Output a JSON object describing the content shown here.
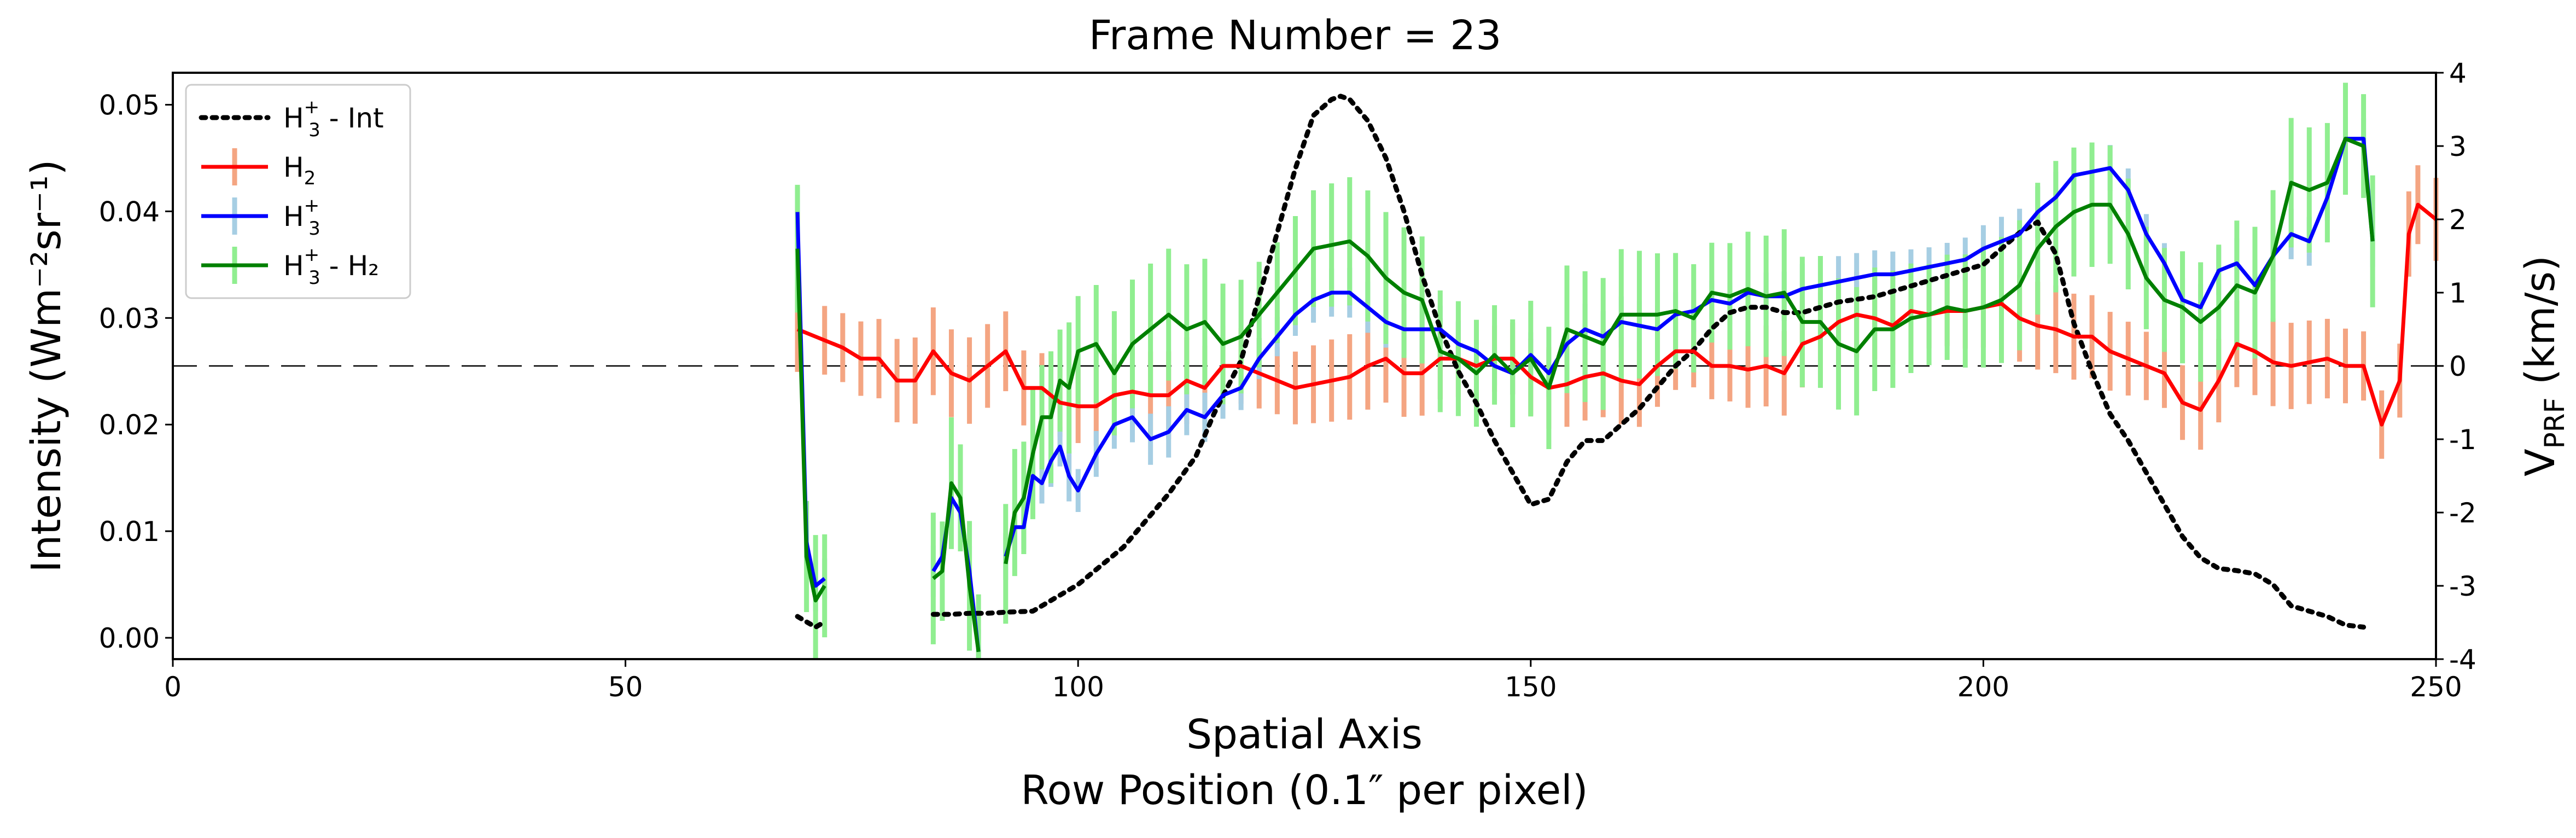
{
  "chart_data": {
    "type": "line",
    "title": "Frame Number = 23",
    "xlabel_line1": "Spatial Axis",
    "xlabel_line2": "Row Position (0.1″ per pixel)",
    "ylabel_left": "Intensity (Wm⁻²sr⁻¹)",
    "ylabel_right_main": "V",
    "ylabel_right_sub": "PRF",
    "ylabel_right_unit": " (km/s)",
    "xlim": [
      0,
      250
    ],
    "ylim_left": [
      -0.002,
      0.053
    ],
    "ylim_right": [
      -4,
      4
    ],
    "xticks": [
      0,
      50,
      100,
      150,
      200,
      250
    ],
    "yticks_left": [
      0.0,
      0.01,
      0.02,
      0.03,
      0.04,
      0.05
    ],
    "ytick_labels_left": [
      "0.00",
      "0.01",
      "0.02",
      "0.03",
      "0.04",
      "0.05"
    ],
    "yticks_right": [
      -4,
      -3,
      -2,
      -1,
      0,
      1,
      2,
      3,
      4
    ],
    "legend_position": "top-left",
    "colors": {
      "int": "#000000",
      "h2": "#ff0000",
      "h3": "#0000ff",
      "diff": "#008000",
      "h2_err": "#f4a582",
      "h3_err": "#a6cee3",
      "diff_err": "#90ee90"
    },
    "legend": [
      {
        "key": "int",
        "main": "H",
        "sub": "3",
        "sup": "+",
        "suffix": " - Int"
      },
      {
        "key": "h2",
        "main": "H",
        "sub": "2",
        "sup": "",
        "suffix": ""
      },
      {
        "key": "h3",
        "main": "H",
        "sub": "3",
        "sup": "+",
        "suffix": ""
      },
      {
        "key": "diff",
        "main": "H",
        "sub": "3",
        "sup": "+",
        "suffix": " - H₂"
      }
    ],
    "series": [
      {
        "key": "int",
        "axis": "left",
        "style": "dotted",
        "segments": [
          {
            "x": [
              69,
              70,
              71,
              72
            ],
            "y": [
              0.002,
              0.0015,
              0.001,
              0.0015
            ]
          },
          {
            "x": [
              84,
              86,
              88,
              90,
              92,
              95,
              100,
              105,
              110,
              113,
              115,
              118,
              120,
              122,
              124,
              126,
              128,
              129,
              130,
              132,
              134,
              136,
              138,
              140,
              142,
              144,
              146,
              148,
              150,
              152,
              154,
              156,
              158,
              160,
              162,
              164,
              166,
              168,
              170,
              172,
              174,
              176,
              178,
              180,
              184,
              188,
              192,
              196,
              200,
              204,
              206,
              208,
              210,
              212,
              214,
              216,
              218,
              220,
              222,
              224,
              226,
              228,
              230,
              232,
              234,
              236,
              238,
              240,
              242
            ],
            "y": [
              0.0022,
              0.0022,
              0.0023,
              0.0023,
              0.0024,
              0.0025,
              0.005,
              0.0085,
              0.0135,
              0.017,
              0.021,
              0.026,
              0.032,
              0.038,
              0.044,
              0.049,
              0.0505,
              0.0508,
              0.0505,
              0.0485,
              0.045,
              0.04,
              0.034,
              0.029,
              0.025,
              0.022,
              0.0185,
              0.0155,
              0.0125,
              0.013,
              0.0165,
              0.0185,
              0.0185,
              0.02,
              0.0215,
              0.0235,
              0.0255,
              0.027,
              0.029,
              0.0305,
              0.031,
              0.031,
              0.0305,
              0.0305,
              0.0315,
              0.032,
              0.033,
              0.034,
              0.035,
              0.038,
              0.039,
              0.036,
              0.0295,
              0.025,
              0.021,
              0.0185,
              0.0155,
              0.0125,
              0.0095,
              0.0075,
              0.0065,
              0.0063,
              0.006,
              0.005,
              0.003,
              0.0025,
              0.002,
              0.0012,
              0.001
            ]
          }
        ]
      },
      {
        "key": "h2",
        "axis": "right",
        "style": "solid",
        "err": 0.6,
        "segments": [
          {
            "x": [
              69,
              72,
              74,
              76,
              78,
              80,
              82,
              84,
              86,
              88,
              90,
              92,
              94,
              96,
              98,
              100,
              102,
              104,
              106,
              108,
              110,
              112,
              114,
              116,
              118,
              120,
              122,
              124,
              126,
              128,
              130,
              132,
              134,
              136,
              138,
              140,
              142,
              144,
              146,
              148,
              150,
              152,
              154,
              156,
              158,
              160,
              162,
              164,
              166,
              168,
              170,
              172,
              174,
              176,
              178,
              180,
              182,
              184,
              186,
              188,
              190,
              192,
              194,
              196,
              198,
              200,
              202,
              204,
              206,
              208,
              210,
              212,
              214,
              216,
              218,
              220,
              222,
              224,
              226,
              228,
              230,
              232,
              234,
              236,
              238,
              240,
              242,
              244,
              246,
              247,
              248,
              250
            ],
            "y": [
              0.5,
              0.35,
              0.25,
              0.1,
              0.1,
              -0.2,
              -0.2,
              0.2,
              -0.1,
              -0.2,
              0.0,
              0.2,
              -0.3,
              -0.3,
              -0.5,
              -0.55,
              -0.55,
              -0.4,
              -0.35,
              -0.4,
              -0.4,
              -0.2,
              -0.3,
              0.0,
              0.0,
              -0.1,
              -0.2,
              -0.3,
              -0.25,
              -0.2,
              -0.15,
              0.0,
              0.1,
              -0.1,
              -0.1,
              0.1,
              0.1,
              0.0,
              0.1,
              0.1,
              -0.15,
              -0.3,
              -0.25,
              -0.15,
              -0.1,
              -0.2,
              -0.25,
              0.0,
              0.2,
              0.2,
              0.0,
              0.0,
              -0.05,
              0.0,
              -0.1,
              0.3,
              0.4,
              0.6,
              0.7,
              0.65,
              0.55,
              0.75,
              0.7,
              0.75,
              0.75,
              0.8,
              0.85,
              0.65,
              0.55,
              0.5,
              0.4,
              0.4,
              0.2,
              0.1,
              0.0,
              -0.1,
              -0.5,
              -0.6,
              -0.2,
              0.3,
              0.2,
              0.05,
              0.0,
              0.05,
              0.1,
              0.0,
              0.0,
              -0.8,
              -0.2,
              1.8,
              2.2,
              2.0
            ]
          }
        ]
      },
      {
        "key": "h3",
        "axis": "right",
        "style": "solid",
        "err": 0.35,
        "segments": [
          {
            "x": [
              69,
              70,
              71,
              72
            ],
            "y": [
              2.1,
              -2.4,
              -3.0,
              -2.9
            ]
          },
          {
            "x": [
              84,
              85,
              86,
              87,
              88,
              89
            ],
            "y": [
              -2.8,
              -2.6,
              -1.8,
              -2.0,
              -2.8,
              -3.9
            ]
          },
          {
            "x": [
              92,
              93,
              94,
              95,
              96,
              97,
              98,
              99,
              100,
              102,
              104,
              106,
              108,
              110,
              112,
              114,
              116,
              118,
              120,
              122,
              124,
              126,
              128,
              130,
              132,
              134,
              136,
              138,
              140,
              142,
              144,
              146,
              148,
              150,
              152,
              154,
              156,
              158,
              160,
              162,
              164,
              166,
              168,
              170,
              172,
              174,
              176,
              178,
              180,
              182,
              184,
              186,
              188,
              190,
              192,
              194,
              196,
              198,
              200,
              202,
              204,
              206,
              208,
              210,
              212,
              214,
              216,
              218,
              220,
              222,
              224,
              226,
              228,
              230,
              232,
              234,
              236,
              238,
              240,
              242,
              243
            ],
            "y": [
              -2.6,
              -2.2,
              -2.2,
              -1.5,
              -1.6,
              -1.3,
              -1.1,
              -1.5,
              -1.7,
              -1.2,
              -0.8,
              -0.7,
              -1.0,
              -0.9,
              -0.6,
              -0.7,
              -0.4,
              -0.3,
              0.1,
              0.4,
              0.7,
              0.9,
              1.0,
              1.0,
              0.8,
              0.6,
              0.5,
              0.5,
              0.5,
              0.3,
              0.2,
              0.0,
              -0.1,
              0.15,
              -0.1,
              0.3,
              0.5,
              0.4,
              0.6,
              0.55,
              0.5,
              0.7,
              0.75,
              0.9,
              0.85,
              1.0,
              0.95,
              0.95,
              1.05,
              1.1,
              1.15,
              1.2,
              1.25,
              1.25,
              1.3,
              1.35,
              1.4,
              1.45,
              1.6,
              1.7,
              1.8,
              2.1,
              2.3,
              2.6,
              2.65,
              2.7,
              2.4,
              1.8,
              1.4,
              0.9,
              0.8,
              1.3,
              1.4,
              1.1,
              1.5,
              1.8,
              1.7,
              2.3,
              3.1,
              3.1,
              1.7
            ]
          }
        ]
      },
      {
        "key": "diff",
        "axis": "right",
        "style": "solid",
        "err": 0.9,
        "segments": [
          {
            "x": [
              69,
              70,
              71,
              72
            ],
            "y": [
              1.6,
              -2.6,
              -3.2,
              -3.0
            ]
          },
          {
            "x": [
              84,
              85,
              86,
              87,
              88,
              89
            ],
            "y": [
              -2.9,
              -2.8,
              -1.6,
              -1.8,
              -3.0,
              -3.9
            ]
          },
          {
            "x": [
              92,
              93,
              94,
              95,
              96,
              97,
              98,
              99,
              100,
              102,
              104,
              106,
              108,
              110,
              112,
              114,
              116,
              118,
              120,
              122,
              124,
              126,
              128,
              130,
              132,
              134,
              136,
              138,
              140,
              142,
              144,
              146,
              148,
              150,
              152,
              154,
              156,
              158,
              160,
              162,
              164,
              166,
              168,
              170,
              172,
              174,
              176,
              178,
              180,
              182,
              184,
              186,
              188,
              190,
              192,
              194,
              196,
              198,
              200,
              202,
              204,
              206,
              208,
              210,
              212,
              214,
              216,
              218,
              220,
              222,
              224,
              226,
              228,
              230,
              232,
              234,
              236,
              238,
              240,
              242,
              243
            ],
            "y": [
              -2.7,
              -2.0,
              -1.8,
              -1.2,
              -0.7,
              -0.7,
              -0.2,
              -0.3,
              0.2,
              0.3,
              -0.1,
              0.3,
              0.5,
              0.7,
              0.5,
              0.6,
              0.3,
              0.4,
              0.7,
              1.0,
              1.3,
              1.6,
              1.65,
              1.7,
              1.5,
              1.2,
              1.0,
              0.9,
              0.2,
              0.1,
              -0.1,
              0.15,
              -0.1,
              0.1,
              -0.3,
              0.5,
              0.4,
              0.3,
              0.7,
              0.7,
              0.7,
              0.75,
              0.65,
              1.0,
              0.95,
              1.05,
              0.95,
              1.0,
              0.6,
              0.6,
              0.3,
              0.2,
              0.5,
              0.5,
              0.65,
              0.7,
              0.8,
              0.75,
              0.8,
              0.9,
              1.1,
              1.6,
              1.9,
              2.1,
              2.2,
              2.2,
              1.8,
              1.2,
              0.9,
              0.8,
              0.6,
              0.8,
              1.1,
              1.0,
              1.5,
              2.5,
              2.4,
              2.5,
              3.1,
              3.0,
              1.7
            ]
          }
        ]
      }
    ]
  }
}
